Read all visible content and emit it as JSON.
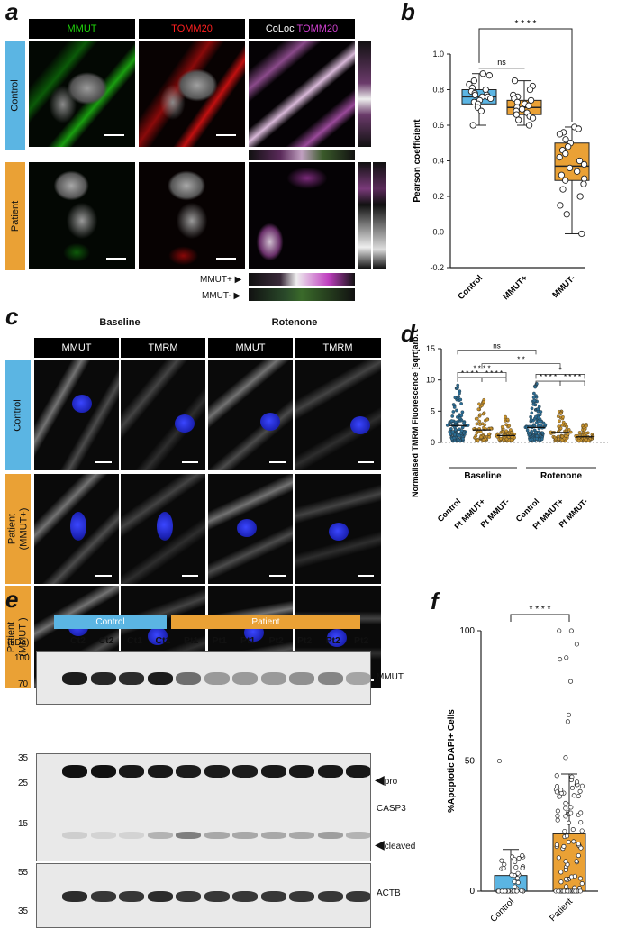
{
  "panels": {
    "a": {
      "label": "a",
      "headers": [
        "MMUT",
        "TOMM20"
      ],
      "coloc_header_a": "CoLoc",
      "coloc_header_b": "TOMM20",
      "rows": [
        "Control",
        "Patient"
      ],
      "strip_labels": [
        "MMUT+",
        "MMUT-"
      ],
      "colors": {
        "green": "#1fd40b",
        "red": "#ff2020",
        "magenta": "#d040d0",
        "control": "#5bb5e3",
        "patient": "#eaa135"
      }
    },
    "b": {
      "label": "b",
      "chart_data": {
        "type": "box",
        "categories": [
          "Control",
          "MMUT+",
          "MMUT-"
        ],
        "ylabel": "Pearson coefficient",
        "ylim": [
          -0.2,
          1.0
        ],
        "yticks": [
          "-0.2",
          "0.0",
          "0.2",
          "0.4",
          "0.6",
          "0.8",
          "1.0"
        ],
        "colors": [
          "#5bb5e3",
          "#eaa135",
          "#eaa135"
        ],
        "boxes": [
          {
            "name": "Control",
            "min": 0.6,
            "q1": 0.72,
            "median": 0.76,
            "q3": 0.8,
            "max": 0.89
          },
          {
            "name": "MMUT+",
            "min": 0.6,
            "q1": 0.66,
            "median": 0.7,
            "q3": 0.74,
            "max": 0.85
          },
          {
            "name": "MMUT-",
            "min": -0.01,
            "q1": 0.29,
            "median": 0.37,
            "q3": 0.5,
            "max": 0.59
          }
        ],
        "points": [
          [
            0.89,
            0.88,
            0.85,
            0.83,
            0.81,
            0.8,
            0.79,
            0.78,
            0.77,
            0.77,
            0.76,
            0.76,
            0.75,
            0.74,
            0.73,
            0.72,
            0.7,
            0.68,
            0.6
          ],
          [
            0.85,
            0.82,
            0.8,
            0.77,
            0.76,
            0.75,
            0.74,
            0.73,
            0.72,
            0.71,
            0.7,
            0.69,
            0.68,
            0.67,
            0.66,
            0.65,
            0.64,
            0.63,
            0.6
          ],
          [
            0.59,
            0.58,
            0.56,
            0.55,
            0.52,
            0.5,
            0.48,
            0.46,
            0.44,
            0.42,
            0.4,
            0.38,
            0.36,
            0.34,
            0.32,
            0.3,
            0.29,
            0.27,
            0.24,
            0.2,
            0.15,
            0.1,
            -0.01
          ]
        ],
        "annotations": [
          {
            "text": "ns",
            "between": [
              "Control",
              "MMUT+"
            ]
          },
          {
            "text": "* * * *",
            "between": [
              "Control",
              "MMUT-"
            ]
          }
        ]
      }
    },
    "c": {
      "label": "c",
      "groups": [
        "Baseline",
        "Rotenone"
      ],
      "headers": [
        "MMUT",
        "TMRM",
        "MMUT",
        "TMRM"
      ],
      "rows": [
        "Control",
        "Patient (MMUT+)",
        "Patient (MMUT-)"
      ]
    },
    "d": {
      "label": "d",
      "chart_data": {
        "type": "scatter",
        "categories": [
          "Control",
          "Pt MMUT+",
          "Pt MMUT-",
          "Control",
          "Pt MMUT+",
          "Pt MMUT-"
        ],
        "groups": [
          "Baseline",
          "Rotenone"
        ],
        "ylabel": "Normalised TMRM Fluorescence [sqrt(arb. unit)]",
        "ylim": [
          0,
          15
        ],
        "yticks": [
          "0",
          "5",
          "10",
          "15"
        ],
        "colors": [
          "#2c6d94",
          "#c8922c",
          "#c8922c",
          "#2c6d94",
          "#c8922c",
          "#c8922c"
        ],
        "medians": [
          2.7,
          2.0,
          1.1,
          2.4,
          1.6,
          0.9
        ],
        "maxima": [
          10.0,
          9.4,
          4.2,
          9.4,
          6.0,
          3.3
        ],
        "annotations": [
          "ns",
          "* *",
          "* * * *",
          "*",
          "* * * *",
          "* * * *",
          "* * * *",
          "* * * *"
        ]
      }
    },
    "e": {
      "label": "e",
      "groups": [
        "Control",
        "Patient"
      ],
      "lanes": [
        "Ct2",
        "Ct2",
        "Ct1",
        "Ct1",
        "Pt1",
        "Pt1",
        "Pt1",
        "Pt2",
        "Pt2",
        "Pt2",
        "Pt2"
      ],
      "kda_label": "(kDa)",
      "markers_top": [
        "100",
        "70"
      ],
      "markers_mid": [
        "35",
        "25",
        "15"
      ],
      "markers_bot": [
        "55",
        "35"
      ],
      "targets": [
        "MMUT",
        "CASP3",
        "ACTB"
      ],
      "bands": [
        "pro",
        "cleaved"
      ]
    },
    "f": {
      "label": "f",
      "chart_data": {
        "type": "bar",
        "categories": [
          "Control",
          "Patient"
        ],
        "values": [
          6,
          22
        ],
        "errors": [
          16,
          45
        ],
        "ylabel": "%Apoptotic DAPI+ Cells",
        "ylim": [
          0,
          100
        ],
        "yticks": [
          "0",
          "50",
          "100"
        ],
        "colors": [
          "#5bb5e3",
          "#eaa135"
        ],
        "annotation": "* * * *"
      }
    }
  }
}
